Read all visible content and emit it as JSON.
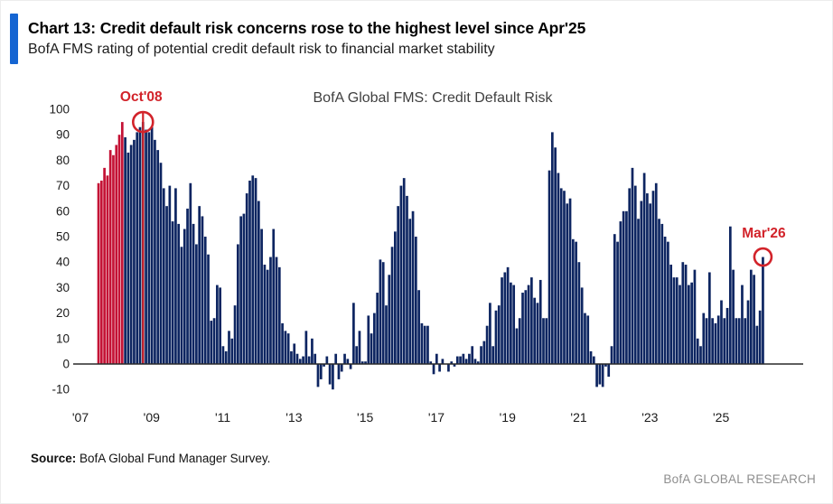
{
  "header": {
    "title": "Chart 13: Credit default risk concerns rose to the highest level since Apr'25",
    "subtitle": "BofA FMS rating of potential credit default risk to financial market stability"
  },
  "footer": {
    "source_label": "Source:",
    "source_text": " BofA Global Fund Manager Survey.",
    "brand": "BofA GLOBAL RESEARCH"
  },
  "colors": {
    "bar_navy": "#0d2561",
    "bar_red": "#c41235",
    "annotation_red": "#d2232a",
    "accent_blue": "#1565d2",
    "axis": "#2a2a2a",
    "tick_text": "#1a1a1a",
    "chart_title_gray": "#3f3f3f",
    "brand_gray": "#8e8e8e"
  },
  "chart_data": {
    "type": "bar",
    "title": "BofA Global FMS: Credit Default Risk",
    "frequency": "monthly",
    "x_start": "2007-07",
    "x_end": "2026-03",
    "y_ticks": [
      100,
      90,
      80,
      70,
      60,
      50,
      40,
      30,
      20,
      10,
      0,
      -10
    ],
    "ylim": [
      -12,
      100
    ],
    "grid": false,
    "legend": "none",
    "x_tick_labels": [
      "'07",
      "'09",
      "'11",
      "'13",
      "'15",
      "'17",
      "'19",
      "'21",
      "'23",
      "'25"
    ],
    "x_tick_years": [
      2007,
      2009,
      2011,
      2013,
      2015,
      2017,
      2019,
      2021,
      2023,
      2025
    ],
    "highlighted_red_bars": {
      "from": "2007-07",
      "to": "2008-03",
      "count": 9
    },
    "values": [
      71,
      72,
      77,
      74,
      84,
      82,
      86,
      90,
      95,
      89,
      83,
      86,
      88,
      91,
      93,
      95,
      92,
      91,
      93,
      88,
      84,
      79,
      69,
      62,
      70,
      56,
      69,
      55,
      46,
      53,
      61,
      71,
      55,
      47,
      62,
      58,
      50,
      43,
      17,
      18,
      31,
      30,
      7,
      5,
      13,
      10,
      23,
      47,
      58,
      59,
      67,
      72,
      74,
      73,
      64,
      53,
      39,
      37,
      42,
      53,
      42,
      38,
      16,
      13,
      12,
      5,
      8,
      4,
      2,
      3,
      13,
      3,
      10,
      4,
      -9,
      -6,
      -1,
      3,
      -8,
      -10,
      4,
      -6,
      -3,
      4,
      2,
      -2,
      24,
      7,
      13,
      1,
      1,
      19,
      12,
      20,
      28,
      41,
      40,
      23,
      35,
      46,
      52,
      62,
      70,
      73,
      66,
      57,
      60,
      50,
      29,
      16,
      15,
      15,
      1,
      -4,
      4,
      -3,
      2,
      0,
      -3,
      1,
      -1,
      3,
      3,
      4,
      2,
      4,
      7,
      2,
      1,
      7,
      9,
      15,
      24,
      7,
      21,
      23,
      34,
      36,
      38,
      32,
      31,
      14,
      18,
      28,
      29,
      31,
      34,
      26,
      24,
      33,
      18,
      18,
      76,
      91,
      85,
      75,
      69,
      68,
      63,
      65,
      49,
      48,
      40,
      30,
      20,
      19,
      5,
      3,
      -9,
      -8,
      -9,
      -1,
      -5,
      7,
      51,
      48,
      56,
      60,
      60,
      69,
      77,
      70,
      57,
      64,
      75,
      67,
      63,
      68,
      71,
      57,
      55,
      50,
      48,
      39,
      34,
      34,
      31,
      40,
      39,
      31,
      32,
      37,
      10,
      7,
      20,
      18,
      36,
      18,
      16,
      19,
      25,
      18,
      22,
      54,
      37,
      18,
      18,
      31,
      18,
      25,
      37,
      35,
      15,
      21,
      42
    ],
    "annotations": [
      {
        "id": "oct08",
        "label": "Oct'08",
        "month": "2008-10",
        "value": 95,
        "marker": "circle",
        "vline": true
      },
      {
        "id": "mar26",
        "label": "Mar'26",
        "month": "2026-03",
        "value": 42,
        "marker": "circle",
        "vline": false
      }
    ]
  }
}
